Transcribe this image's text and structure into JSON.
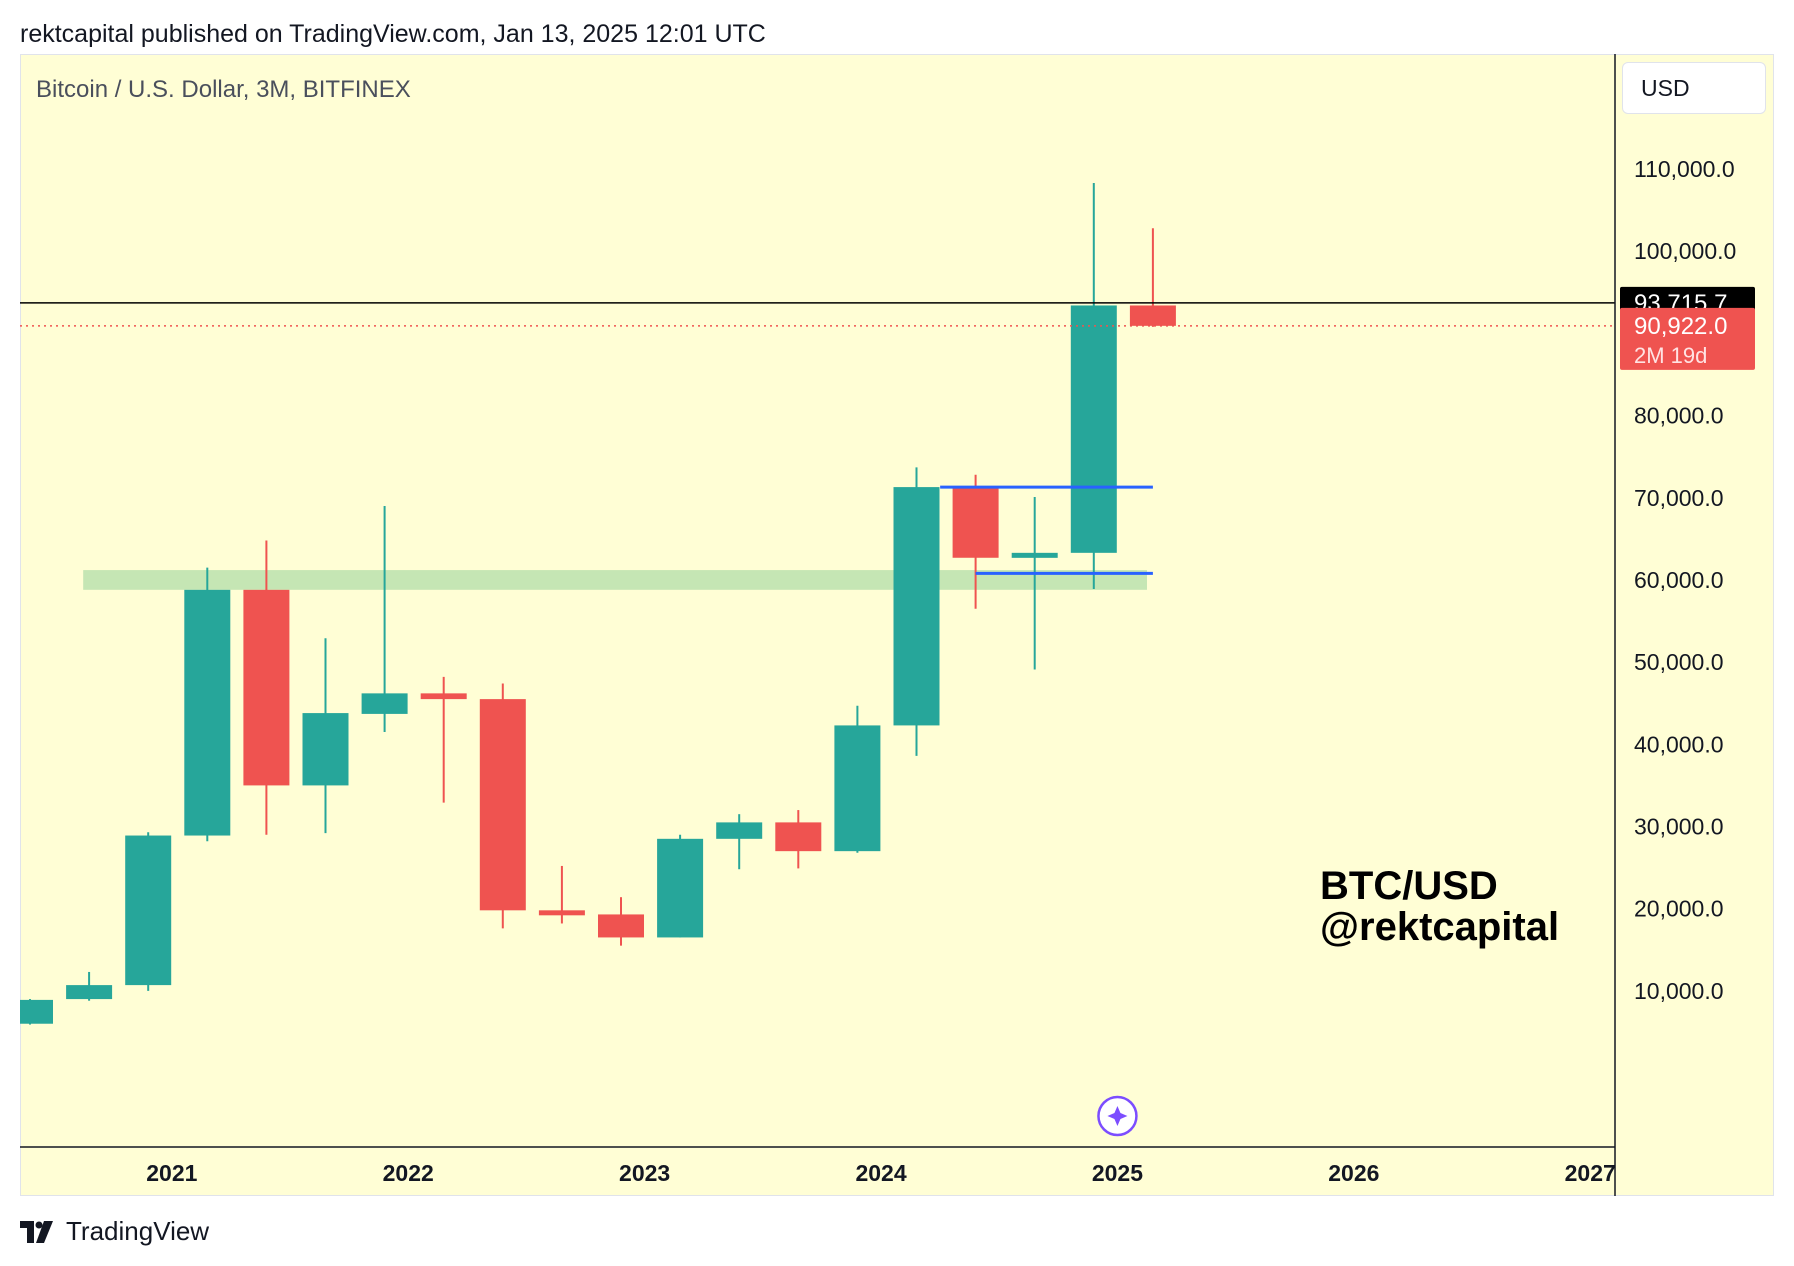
{
  "publisher_line": "rektcapital published on TradingView.com, Jan 13, 2025 12:01 UTC",
  "symbol_title": "Bitcoin / U.S. Dollar, 3M, BITFINEX",
  "currency_button": "USD",
  "watermark": {
    "line1": "BTC/USD",
    "line2": "@rektcapital"
  },
  "footer_logo_text": "TradingView",
  "colors": {
    "background": "#fffed5",
    "up": "#26a69a",
    "down": "#ef5350",
    "range_lines": "#2962ff",
    "support_zone": "#c5e6b4",
    "crosshair": "#000000"
  },
  "chart_data": {
    "type": "candlestick",
    "title": "Bitcoin / U.S. Dollar, 3M, BITFINEX",
    "ylim": [
      -9000,
      124000
    ],
    "y_ticks": [
      10000,
      20000,
      30000,
      40000,
      50000,
      60000,
      70000,
      80000,
      100000,
      110000
    ],
    "y_tick_labels": [
      "10,000.0",
      "20,000.0",
      "30,000.0",
      "40,000.0",
      "50,000.0",
      "60,000.0",
      "70,000.0",
      "80,000.0",
      "100,000.0",
      "110,000.0"
    ],
    "x_ticks": [
      {
        "label": "2021",
        "index": 2.4
      },
      {
        "label": "2022",
        "index": 6.4
      },
      {
        "label": "2023",
        "index": 10.4
      },
      {
        "label": "2024",
        "index": 14.4
      },
      {
        "label": "2025",
        "index": 18.4
      },
      {
        "label": "2026",
        "index": 22.4
      },
      {
        "label": "2027",
        "index": 26.4
      }
    ],
    "candles": [
      {
        "o": 6000,
        "h": 9000,
        "l": 5900,
        "c": 8900
      },
      {
        "o": 9000,
        "h": 12300,
        "l": 8800,
        "c": 10700
      },
      {
        "o": 10700,
        "h": 29300,
        "l": 10000,
        "c": 28900
      },
      {
        "o": 28900,
        "h": 61500,
        "l": 28200,
        "c": 58800
      },
      {
        "o": 58800,
        "h": 64800,
        "l": 29000,
        "c": 35000
      },
      {
        "o": 35000,
        "h": 52900,
        "l": 29200,
        "c": 43800
      },
      {
        "o": 43700,
        "h": 69000,
        "l": 41500,
        "c": 46200
      },
      {
        "o": 46200,
        "h": 48200,
        "l": 32900,
        "c": 45500
      },
      {
        "o": 45500,
        "h": 47400,
        "l": 17600,
        "c": 19800
      },
      {
        "o": 19800,
        "h": 25200,
        "l": 18200,
        "c": 19300
      },
      {
        "o": 19300,
        "h": 21400,
        "l": 15500,
        "c": 16500
      },
      {
        "o": 16500,
        "h": 29000,
        "l": 16500,
        "c": 28500
      },
      {
        "o": 28500,
        "h": 31500,
        "l": 24800,
        "c": 30500
      },
      {
        "o": 30500,
        "h": 32000,
        "l": 24900,
        "c": 27000
      },
      {
        "o": 27000,
        "h": 44700,
        "l": 26800,
        "c": 42300
      },
      {
        "o": 42300,
        "h": 73700,
        "l": 38600,
        "c": 71300
      },
      {
        "o": 71300,
        "h": 72800,
        "l": 56500,
        "c": 62700
      },
      {
        "o": 62700,
        "h": 70100,
        "l": 49100,
        "c": 63300
      },
      {
        "o": 63300,
        "h": 108300,
        "l": 58900,
        "c": 93400
      },
      {
        "o": 93400,
        "h": 102800,
        "l": 90800,
        "c": 90922
      }
    ],
    "support_zone": {
      "from_index": 0.9,
      "to_index": 18.9,
      "low": 58800,
      "high": 61200
    },
    "range_lines": [
      {
        "value": 71300,
        "from_index": 15.4,
        "to_index": 19.0
      },
      {
        "value": 60800,
        "from_index": 16.0,
        "to_index": 19.0
      }
    ],
    "crosshair_price": {
      "value": 93715.7,
      "label": "93,715.7"
    },
    "last_price": {
      "value": 90922.0,
      "label": "90,922.0",
      "countdown": "2M 19d"
    }
  }
}
